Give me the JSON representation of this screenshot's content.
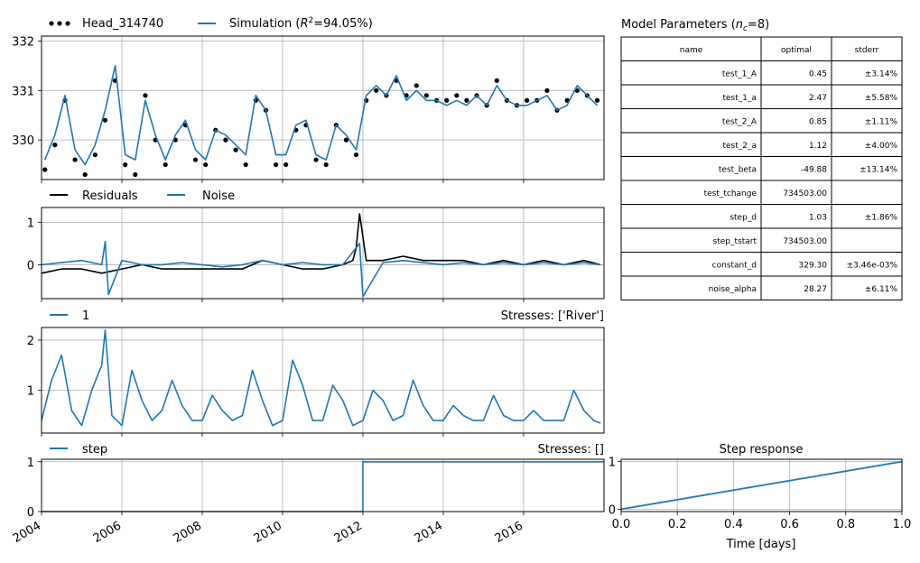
{
  "colors": {
    "head": "#000000",
    "simulation": "#1f77b4",
    "residuals": "#000000",
    "noise": "#1f77b4",
    "grid": "#b0b0b0"
  },
  "chart_data": [
    {
      "type": "line",
      "panel": "head-simulation",
      "legend": [
        "Head_314740",
        "Simulation ($R^2$=94.05%)"
      ],
      "legend_location": "top-left",
      "x_type": "date",
      "xlim": [
        "2004-01-01",
        "2017-12-31"
      ],
      "ylim": [
        329.2,
        332.1
      ],
      "yticks": [
        330,
        331,
        332
      ],
      "grid": true,
      "series": [
        {
          "name": "Head_314740",
          "style": "markers",
          "x": [
            "2004-02",
            "2004-05",
            "2004-08",
            "2004-11",
            "2005-02",
            "2005-05",
            "2005-08",
            "2005-11",
            "2006-02",
            "2006-05",
            "2006-08",
            "2006-11",
            "2007-02",
            "2007-05",
            "2007-08",
            "2007-11",
            "2008-02",
            "2008-05",
            "2008-08",
            "2008-11",
            "2009-02",
            "2009-05",
            "2009-08",
            "2009-11",
            "2010-02",
            "2010-05",
            "2010-08",
            "2010-11",
            "2011-02",
            "2011-05",
            "2011-08",
            "2011-11",
            "2012-02",
            "2012-05",
            "2012-08",
            "2012-11",
            "2013-02",
            "2013-05",
            "2013-08",
            "2013-11",
            "2014-02",
            "2014-05",
            "2014-08",
            "2014-11",
            "2015-02",
            "2015-05",
            "2015-08",
            "2015-11",
            "2016-02",
            "2016-05",
            "2016-08",
            "2016-11",
            "2017-02",
            "2017-05",
            "2017-08",
            "2017-11"
          ],
          "y": [
            329.4,
            329.9,
            330.8,
            329.6,
            329.3,
            329.7,
            330.4,
            331.2,
            329.5,
            329.3,
            330.9,
            330.0,
            329.5,
            330.0,
            330.3,
            329.6,
            329.5,
            330.2,
            330.0,
            329.8,
            329.5,
            330.8,
            330.6,
            329.5,
            329.5,
            330.2,
            330.3,
            329.6,
            329.5,
            330.3,
            330.0,
            329.7,
            330.8,
            331.0,
            330.9,
            331.2,
            330.9,
            331.1,
            330.9,
            330.8,
            330.8,
            330.9,
            330.8,
            330.9,
            330.7,
            331.2,
            330.8,
            330.7,
            330.8,
            330.8,
            331.0,
            330.6,
            330.8,
            331.0,
            330.9,
            330.8
          ]
        },
        {
          "name": "Simulation ($R^2$=94.05%)",
          "style": "line",
          "x": [
            "2004-02",
            "2004-05",
            "2004-08",
            "2004-11",
            "2005-02",
            "2005-05",
            "2005-08",
            "2005-11",
            "2006-02",
            "2006-05",
            "2006-08",
            "2006-11",
            "2007-02",
            "2007-05",
            "2007-08",
            "2007-11",
            "2008-02",
            "2008-05",
            "2008-08",
            "2008-11",
            "2009-02",
            "2009-05",
            "2009-08",
            "2009-11",
            "2010-02",
            "2010-05",
            "2010-08",
            "2010-11",
            "2011-02",
            "2011-05",
            "2011-08",
            "2011-11",
            "2012-02",
            "2012-05",
            "2012-08",
            "2012-11",
            "2013-02",
            "2013-05",
            "2013-08",
            "2013-11",
            "2014-02",
            "2014-05",
            "2014-08",
            "2014-11",
            "2015-02",
            "2015-05",
            "2015-08",
            "2015-11",
            "2016-02",
            "2016-05",
            "2016-08",
            "2016-11",
            "2017-02",
            "2017-05",
            "2017-08",
            "2017-11"
          ],
          "y": [
            329.6,
            330.1,
            330.9,
            329.8,
            329.5,
            329.9,
            330.6,
            331.5,
            329.7,
            329.6,
            330.8,
            330.1,
            329.6,
            330.1,
            330.4,
            329.8,
            329.6,
            330.2,
            330.1,
            329.9,
            329.7,
            330.9,
            330.6,
            329.7,
            329.7,
            330.3,
            330.4,
            329.7,
            329.6,
            330.3,
            330.1,
            329.8,
            330.9,
            331.1,
            330.9,
            331.3,
            330.8,
            331.0,
            330.8,
            330.8,
            330.7,
            330.8,
            330.7,
            330.9,
            330.7,
            331.1,
            330.8,
            330.7,
            330.7,
            330.8,
            330.9,
            330.6,
            330.7,
            331.1,
            330.9,
            330.7
          ]
        }
      ]
    },
    {
      "type": "line",
      "panel": "residuals-noise",
      "legend": [
        "Residuals",
        "Noise"
      ],
      "legend_location": "top-left",
      "x_type": "date",
      "xlim": [
        "2004-01-01",
        "2017-12-31"
      ],
      "ylim": [
        -0.8,
        1.35
      ],
      "yticks": [
        0,
        1
      ],
      "grid": true,
      "series": [
        {
          "name": "Residuals",
          "x": [
            "2004-01",
            "2004-07",
            "2005-01",
            "2005-07",
            "2006-01",
            "2006-07",
            "2007-01",
            "2007-07",
            "2008-01",
            "2008-07",
            "2009-01",
            "2009-07",
            "2010-01",
            "2010-07",
            "2011-01",
            "2011-07",
            "2011-10",
            "2011-11",
            "2011-12",
            "2012-02",
            "2012-07",
            "2013-01",
            "2013-07",
            "2014-01",
            "2014-07",
            "2015-01",
            "2015-07",
            "2016-01",
            "2016-07",
            "2017-01",
            "2017-07",
            "2017-12"
          ],
          "y": [
            -0.2,
            -0.1,
            -0.1,
            -0.2,
            -0.1,
            0.0,
            -0.1,
            -0.1,
            -0.1,
            -0.1,
            -0.1,
            0.1,
            0.0,
            -0.1,
            -0.1,
            0.0,
            0.1,
            0.4,
            1.2,
            0.1,
            0.1,
            0.2,
            0.1,
            0.1,
            0.1,
            0.0,
            0.1,
            0.0,
            0.1,
            0.0,
            0.1,
            0.0
          ]
        },
        {
          "name": "Noise",
          "x": [
            "2004-01",
            "2004-07",
            "2005-01",
            "2005-07",
            "2005-08",
            "2005-09",
            "2006-01",
            "2006-07",
            "2007-01",
            "2007-07",
            "2008-01",
            "2008-07",
            "2009-01",
            "2009-07",
            "2010-01",
            "2010-07",
            "2011-01",
            "2011-07",
            "2011-10",
            "2011-12",
            "2012-01",
            "2012-07",
            "2013-01",
            "2013-07",
            "2014-01",
            "2014-07",
            "2015-01",
            "2015-07",
            "2016-01",
            "2016-07",
            "2017-01",
            "2017-07",
            "2017-12"
          ],
          "y": [
            0.0,
            0.05,
            0.1,
            0.0,
            0.55,
            -0.7,
            0.1,
            0.0,
            0.0,
            0.05,
            0.0,
            -0.05,
            0.0,
            0.1,
            0.0,
            0.05,
            0.0,
            0.0,
            0.3,
            0.5,
            -0.75,
            0.05,
            0.1,
            0.05,
            0.0,
            0.05,
            0.0,
            0.05,
            0.0,
            0.05,
            0.0,
            0.05,
            0.0
          ]
        }
      ]
    },
    {
      "type": "line",
      "panel": "stress-river",
      "legend": [
        "1"
      ],
      "title_right": "Stresses: ['River']",
      "x_type": "date",
      "xlim": [
        "2004-01-01",
        "2017-12-31"
      ],
      "ylim": [
        0.15,
        2.25
      ],
      "yticks": [
        1,
        2
      ],
      "grid": true,
      "series": [
        {
          "name": "1",
          "x": [
            "2004-01",
            "2004-04",
            "2004-07",
            "2004-10",
            "2005-01",
            "2005-04",
            "2005-07",
            "2005-08",
            "2005-10",
            "2006-01",
            "2006-04",
            "2006-07",
            "2006-10",
            "2007-01",
            "2007-04",
            "2007-07",
            "2007-10",
            "2008-01",
            "2008-04",
            "2008-07",
            "2008-10",
            "2009-01",
            "2009-04",
            "2009-07",
            "2009-10",
            "2010-01",
            "2010-04",
            "2010-07",
            "2010-10",
            "2011-01",
            "2011-04",
            "2011-07",
            "2011-10",
            "2012-01",
            "2012-04",
            "2012-07",
            "2012-10",
            "2013-01",
            "2013-04",
            "2013-07",
            "2013-10",
            "2014-01",
            "2014-04",
            "2014-07",
            "2014-10",
            "2015-01",
            "2015-04",
            "2015-07",
            "2015-10",
            "2016-01",
            "2016-04",
            "2016-07",
            "2016-10",
            "2017-01",
            "2017-04",
            "2017-07",
            "2017-10",
            "2017-12"
          ],
          "y": [
            0.4,
            1.2,
            1.7,
            0.6,
            0.3,
            1.0,
            1.5,
            2.2,
            0.5,
            0.3,
            1.4,
            0.8,
            0.4,
            0.6,
            1.2,
            0.7,
            0.4,
            0.4,
            0.9,
            0.6,
            0.4,
            0.5,
            1.4,
            0.8,
            0.3,
            0.4,
            1.6,
            1.1,
            0.4,
            0.4,
            1.1,
            0.8,
            0.3,
            0.4,
            1.0,
            0.8,
            0.4,
            0.5,
            1.2,
            0.7,
            0.4,
            0.4,
            0.7,
            0.5,
            0.4,
            0.4,
            0.9,
            0.5,
            0.4,
            0.4,
            0.6,
            0.4,
            0.4,
            0.4,
            1.0,
            0.6,
            0.4,
            0.35
          ]
        }
      ]
    },
    {
      "type": "line",
      "panel": "stress-step",
      "legend": [
        "step"
      ],
      "title_right": "Stresses: []",
      "x_type": "date",
      "xlim": [
        "2004-01-01",
        "2017-12-31"
      ],
      "xticks": [
        "2004",
        "2006",
        "2008",
        "2010",
        "2012",
        "2014",
        "2016"
      ],
      "ylim": [
        0,
        1.05
      ],
      "yticks": [
        0,
        1
      ],
      "grid": true,
      "series": [
        {
          "name": "step",
          "x": [
            "2004-01-01",
            "2011-12-31",
            "2011-12-31",
            "2017-12-31"
          ],
          "y": [
            0,
            0,
            1,
            1
          ]
        }
      ]
    },
    {
      "type": "line",
      "panel": "step-response",
      "title": "Step response",
      "xlabel": "Time [days]",
      "xlim": [
        0.0,
        1.0
      ],
      "xticks": [
        "0.0",
        "0.2",
        "0.4",
        "0.6",
        "0.8",
        "1.0"
      ],
      "ylim": [
        -0.05,
        1.05
      ],
      "yticks": [
        0,
        1
      ],
      "grid": true,
      "series": [
        {
          "x": [
            0.0,
            1.0
          ],
          "y": [
            0.0,
            1.0
          ]
        }
      ]
    },
    {
      "type": "table",
      "title": "Model Parameters ($n_c$=8)",
      "columns": [
        "name",
        "optimal",
        "stderr"
      ],
      "rows": [
        [
          "test_1_A",
          "0.45",
          "±3.14%"
        ],
        [
          "test_1_a",
          "2.47",
          "±5.58%"
        ],
        [
          "test_2_A",
          "0.85",
          "±1.11%"
        ],
        [
          "test_2_a",
          "1.12",
          "±4.00%"
        ],
        [
          "test_beta",
          "-49.88",
          "±13.14%"
        ],
        [
          "test_tchange",
          "734503.00",
          ""
        ],
        [
          "step_d",
          "1.03",
          "±1.86%"
        ],
        [
          "step_tstart",
          "734503.00",
          ""
        ],
        [
          "constant_d",
          "329.30",
          "±3.46e-03%"
        ],
        [
          "noise_alpha",
          "28.27",
          "±6.11%"
        ]
      ]
    }
  ]
}
